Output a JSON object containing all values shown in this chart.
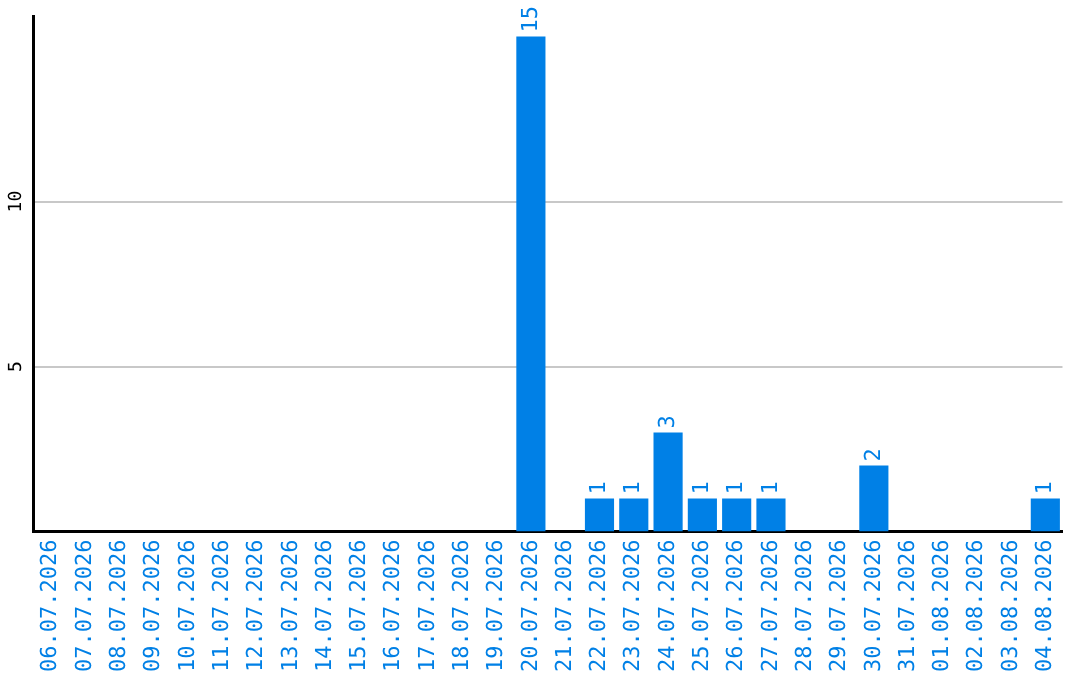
{
  "chart_data": {
    "type": "bar",
    "categories": [
      "06.07.2026",
      "07.07.2026",
      "08.07.2026",
      "09.07.2026",
      "10.07.2026",
      "11.07.2026",
      "12.07.2026",
      "13.07.2026",
      "14.07.2026",
      "15.07.2026",
      "16.07.2026",
      "17.07.2026",
      "18.07.2026",
      "19.07.2026",
      "20.07.2026",
      "21.07.2026",
      "22.07.2026",
      "23.07.2026",
      "24.07.2026",
      "25.07.2026",
      "26.07.2026",
      "27.07.2026",
      "28.07.2026",
      "29.07.2026",
      "30.07.2026",
      "31.07.2026",
      "01.08.2026",
      "02.08.2026",
      "03.08.2026",
      "04.08.2026"
    ],
    "values": [
      0,
      0,
      0,
      0,
      0,
      0,
      0,
      0,
      0,
      0,
      0,
      0,
      0,
      0,
      15,
      0,
      1,
      1,
      3,
      1,
      1,
      1,
      0,
      0,
      2,
      0,
      0,
      0,
      0,
      1
    ],
    "value_labels": [
      null,
      null,
      null,
      null,
      null,
      null,
      null,
      null,
      null,
      null,
      null,
      null,
      null,
      null,
      "15",
      null,
      "1",
      "1",
      "3",
      "1",
      "1",
      "1",
      null,
      null,
      "2",
      null,
      null,
      null,
      null,
      "1"
    ],
    "color": "#0080e6",
    "ylim": [
      0,
      15.6
    ],
    "yticks": [
      5,
      10
    ],
    "grid": "y"
  }
}
